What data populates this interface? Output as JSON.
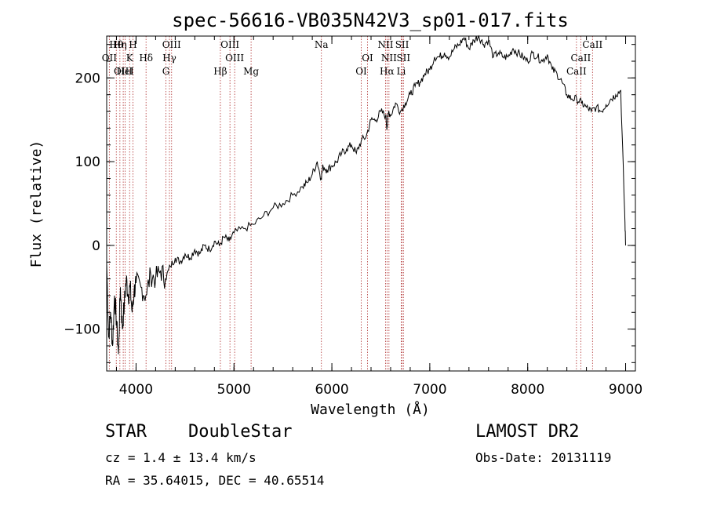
{
  "chart_data": {
    "type": "line",
    "title": "spec-56616-VB035N42V3_sp01-017.fits",
    "xlabel": "Wavelength (Å)",
    "ylabel": "Flux (relative)",
    "xlim": [
      3700,
      9100
    ],
    "ylim": [
      -150,
      250
    ],
    "xticks": [
      4000,
      5000,
      6000,
      7000,
      8000,
      9000
    ],
    "yticks": [
      -100,
      0,
      100,
      200
    ],
    "grid": false,
    "series": [
      {
        "x": [
          3700,
          3720,
          3740,
          3760,
          3780,
          3800,
          3820,
          3840,
          3860,
          3880,
          3900,
          3920,
          3940,
          3960,
          3980,
          4000,
          4050,
          4100,
          4150,
          4200,
          4250,
          4300,
          4350,
          4400,
          4450,
          4500,
          4550,
          4600,
          4650,
          4700,
          4750,
          4800,
          4850,
          4900,
          4950,
          5000,
          5100,
          5200,
          5300,
          5400,
          5500,
          5600,
          5700,
          5750,
          5800,
          5850,
          5890,
          5910,
          5950,
          6000,
          6050,
          6100,
          6150,
          6200,
          6250,
          6300,
          6350,
          6400,
          6450,
          6500,
          6550,
          6563,
          6580,
          6600,
          6650,
          6700,
          6750,
          6800,
          6850,
          6900,
          6950,
          7000,
          7050,
          7100,
          7150,
          7200,
          7250,
          7300,
          7350,
          7400,
          7450,
          7500,
          7550,
          7600,
          7650,
          7700,
          7750,
          7800,
          7850,
          7900,
          7950,
          8000,
          8050,
          8100,
          8150,
          8200,
          8250,
          8300,
          8350,
          8400,
          8450,
          8500,
          8550,
          8600,
          8650,
          8700,
          8750,
          8800,
          8850,
          8900,
          8950,
          8990,
          9000
        ],
        "y": [
          -20,
          -110,
          -80,
          -120,
          -60,
          -90,
          -130,
          -50,
          -100,
          -70,
          -40,
          -60,
          -50,
          -80,
          -55,
          -45,
          -50,
          -60,
          -35,
          -40,
          -30,
          -40,
          -25,
          -15,
          -20,
          -10,
          -15,
          -5,
          -10,
          0,
          -5,
          5,
          0,
          10,
          5,
          15,
          20,
          25,
          35,
          45,
          50,
          60,
          70,
          75,
          85,
          100,
          80,
          95,
          90,
          95,
          100,
          110,
          115,
          120,
          110,
          125,
          130,
          150,
          150,
          160,
          155,
          140,
          160,
          155,
          170,
          160,
          170,
          180,
          190,
          195,
          205,
          210,
          225,
          225,
          230,
          225,
          235,
          240,
          248,
          235,
          245,
          250,
          240,
          245,
          225,
          230,
          225,
          225,
          235,
          230,
          225,
          220,
          230,
          225,
          220,
          228,
          210,
          205,
          195,
          180,
          175,
          175,
          170,
          165,
          160,
          165,
          160,
          168,
          175,
          180,
          185,
          40,
          0
        ]
      }
    ],
    "lines": [
      {
        "label": "Hθ",
        "wl": 3798
      },
      {
        "label": "OII",
        "wl": 3727
      },
      {
        "label": "OIII",
        "wl": 3869
      },
      {
        "label": "Hη",
        "wl": 3835
      },
      {
        "label": "K",
        "wl": 3934
      },
      {
        "label": "HeI",
        "wl": 3889
      },
      {
        "label": "H",
        "wl": 3968
      },
      {
        "label": "Hδ",
        "wl": 4102
      },
      {
        "label": "G",
        "wl": 4305
      },
      {
        "label": "OIII",
        "wl": 4363
      },
      {
        "label": "Hγ",
        "wl": 4341
      },
      {
        "label": "Hβ",
        "wl": 4861
      },
      {
        "label": "OIII",
        "wl": 4959
      },
      {
        "label": "OIII",
        "wl": 5007
      },
      {
        "label": "Mg",
        "wl": 5175
      },
      {
        "label": "Na",
        "wl": 5893
      },
      {
        "label": "OI",
        "wl": 6364
      },
      {
        "label": "OI",
        "wl": 6300
      },
      {
        "label": "NII",
        "wl": 6548
      },
      {
        "label": "NII",
        "wl": 6583
      },
      {
        "label": "Hα",
        "wl": 6563
      },
      {
        "label": "SII",
        "wl": 6717
      },
      {
        "label": "SII",
        "wl": 6731
      },
      {
        "label": "Li",
        "wl": 6708
      },
      {
        "label": "CaII",
        "wl": 8662
      },
      {
        "label": "CaII",
        "wl": 8542
      },
      {
        "label": "CaII",
        "wl": 8498
      }
    ]
  },
  "info": {
    "class": "STAR",
    "subclass": "DoubleStar",
    "survey": "LAMOST DR2",
    "cz": "cz = 1.4 ± 13.4 km/s",
    "obs_date": "Obs-Date: 20131119",
    "radec": "RA =  35.64015, DEC =  40.65514"
  }
}
